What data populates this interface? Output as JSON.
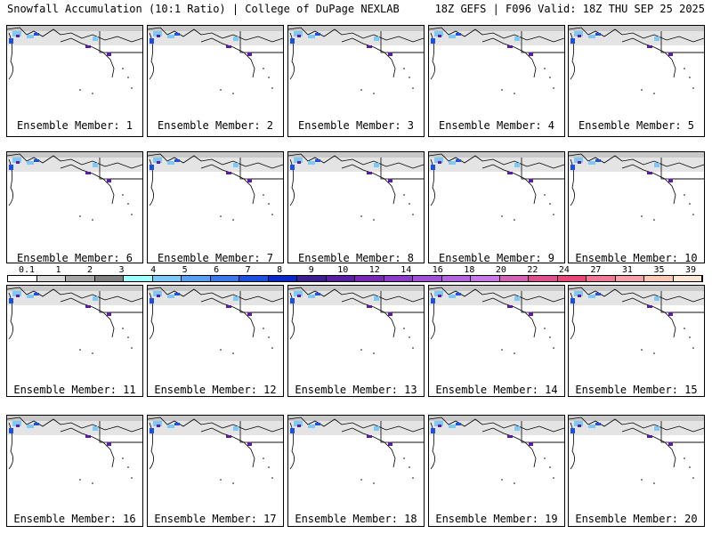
{
  "header": {
    "left_title": "Snowfall Accumulation (10:1 Ratio) | College of DuPage NEXLAB",
    "right_title": "18Z GEFS | F096 Valid: 18Z THU SEP 25 2025"
  },
  "panels": [
    {
      "label": "Ensemble Member: 1"
    },
    {
      "label": "Ensemble Member: 2"
    },
    {
      "label": "Ensemble Member: 3"
    },
    {
      "label": "Ensemble Member: 4"
    },
    {
      "label": "Ensemble Member: 5"
    },
    {
      "label": "Ensemble Member: 6"
    },
    {
      "label": "Ensemble Member: 7"
    },
    {
      "label": "Ensemble Member: 8"
    },
    {
      "label": "Ensemble Member: 9"
    },
    {
      "label": "Ensemble Member: 10"
    },
    {
      "label": "Ensemble Member: 11"
    },
    {
      "label": "Ensemble Member: 12"
    },
    {
      "label": "Ensemble Member: 13"
    },
    {
      "label": "Ensemble Member: 14"
    },
    {
      "label": "Ensemble Member: 15"
    },
    {
      "label": "Ensemble Member: 16"
    },
    {
      "label": "Ensemble Member: 17"
    },
    {
      "label": "Ensemble Member: 18"
    },
    {
      "label": "Ensemble Member: 19"
    },
    {
      "label": "Ensemble Member: 20"
    }
  ],
  "colorbar": {
    "labels": [
      "0.1",
      "1",
      "2",
      "3",
      "4",
      "5",
      "6",
      "7",
      "8",
      "9",
      "10",
      "12",
      "14",
      "16",
      "18",
      "20",
      "22",
      "24",
      "27",
      "31",
      "35",
      "39"
    ],
    "colors": [
      "#ffffff",
      "#d9d9d9",
      "#a6a6a6",
      "#808080",
      "#a0ffff",
      "#7ec8f8",
      "#5aa0f0",
      "#3c78e8",
      "#1e50e0",
      "#0a28c8",
      "#3c1e8c",
      "#5a1ea0",
      "#7828b4",
      "#8c3cc8",
      "#a050d2",
      "#b464dc",
      "#c878e6",
      "#d264b4",
      "#dc508c",
      "#e64678",
      "#f07896",
      "#f6a0aa",
      "#fac8b4",
      "#fde6d2"
    ]
  }
}
